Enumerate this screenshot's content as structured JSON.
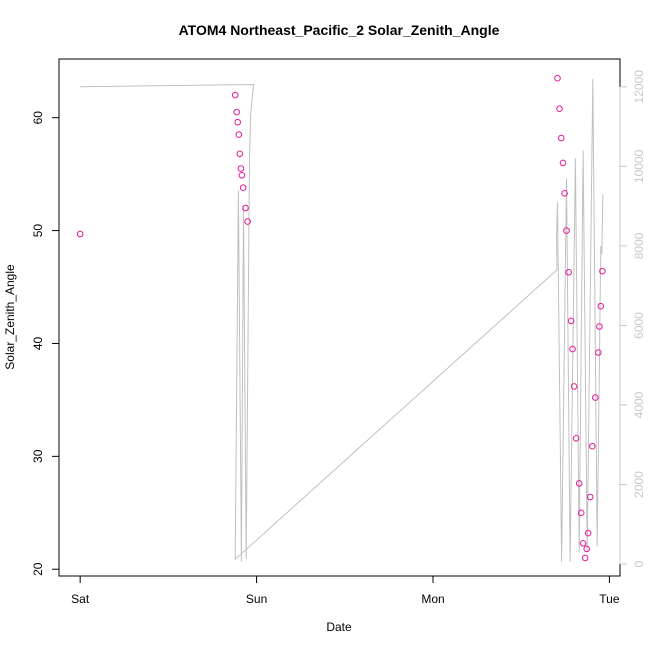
{
  "chart_data": {
    "type": "scatter",
    "title": "ATOM4 Northeast_Pacific_2 Solar_Zenith_Angle",
    "xlabel": "Date",
    "ylabel": "Solar_Zenith_Angle",
    "x_ticks": [
      "Sat",
      "Sun",
      "Mon",
      "Tue"
    ],
    "x_tick_positions": [
      0,
      1,
      2,
      3
    ],
    "xlim": [
      -0.12,
      3.06
    ],
    "ylim": [
      19.4,
      65.2
    ],
    "y_ticks": [
      20,
      30,
      40,
      50,
      60
    ],
    "y2lim": [
      -300,
      12700
    ],
    "y2_ticks": [
      0,
      2000,
      4000,
      6000,
      8000,
      10000,
      12000
    ],
    "colors": {
      "points": "#e8189a",
      "secondary_line": "#c0c0c0",
      "secondary_axis": "#c8c8c8",
      "axis": "#000000"
    },
    "series": [
      {
        "type": "scatter",
        "axis": "left",
        "points": [
          [
            0.0,
            49.7
          ],
          [
            0.879,
            62.0
          ],
          [
            0.887,
            60.5
          ],
          [
            0.893,
            59.6
          ],
          [
            0.899,
            58.5
          ],
          [
            0.905,
            56.8
          ],
          [
            0.911,
            55.5
          ],
          [
            0.917,
            54.9
          ],
          [
            0.924,
            53.8
          ],
          [
            0.937,
            52.0
          ],
          [
            0.949,
            50.8
          ],
          [
            2.706,
            63.5
          ],
          [
            2.717,
            60.8
          ],
          [
            2.727,
            58.2
          ],
          [
            2.737,
            56.0
          ],
          [
            2.746,
            53.3
          ],
          [
            2.757,
            50.0
          ],
          [
            2.769,
            46.3
          ],
          [
            2.783,
            42.0
          ],
          [
            2.791,
            39.5
          ],
          [
            2.8,
            36.2
          ],
          [
            2.811,
            31.6
          ],
          [
            2.829,
            27.6
          ],
          [
            2.84,
            25.0
          ],
          [
            2.851,
            22.3
          ],
          [
            2.863,
            21.0
          ],
          [
            2.871,
            21.8
          ],
          [
            2.88,
            23.2
          ],
          [
            2.891,
            26.4
          ],
          [
            2.903,
            30.9
          ],
          [
            2.92,
            35.2
          ],
          [
            2.937,
            39.2
          ],
          [
            2.943,
            41.5
          ],
          [
            2.951,
            43.3
          ],
          [
            2.96,
            46.4
          ]
        ]
      },
      {
        "type": "line",
        "axis": "right",
        "points": [
          [
            0.0,
            12000
          ],
          [
            0.983,
            12060
          ],
          [
            0.966,
            11300
          ],
          [
            0.96,
            10200
          ],
          [
            0.941,
            120
          ],
          [
            0.926,
            9000
          ],
          [
            0.914,
            60
          ],
          [
            0.897,
            9400
          ],
          [
            0.879,
            120
          ],
          [
            2.703,
            7400
          ],
          [
            2.7,
            8200
          ],
          [
            2.706,
            9100
          ],
          [
            2.729,
            60
          ],
          [
            2.757,
            9700
          ],
          [
            2.777,
            60
          ],
          [
            2.807,
            10200
          ],
          [
            2.829,
            300
          ],
          [
            2.851,
            10400
          ],
          [
            2.874,
            320
          ],
          [
            2.906,
            12200
          ],
          [
            2.931,
            450
          ],
          [
            2.951,
            8000
          ],
          [
            2.957,
            7800
          ],
          [
            2.963,
            9300
          ]
        ]
      }
    ]
  }
}
